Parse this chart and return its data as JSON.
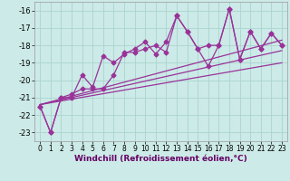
{
  "xlabel": "Windchill (Refroidissement éolien,°C)",
  "bg_color": "#cceae7",
  "grid_color": "#aad4d0",
  "line_color": "#993399",
  "xlim": [
    -0.5,
    23.5
  ],
  "ylim": [
    -23.5,
    -15.5
  ],
  "yticks": [
    -23,
    -22,
    -21,
    -20,
    -19,
    -18,
    -17,
    -16
  ],
  "xticks": [
    0,
    1,
    2,
    3,
    4,
    5,
    6,
    7,
    8,
    9,
    10,
    11,
    12,
    13,
    14,
    15,
    16,
    17,
    18,
    19,
    20,
    21,
    22,
    23
  ],
  "lines": [
    {
      "x": [
        0,
        1,
        2,
        3,
        4,
        5,
        6,
        7,
        8,
        9,
        10,
        11,
        12,
        13,
        14,
        15,
        16,
        17,
        18,
        19,
        20,
        21,
        22,
        23
      ],
      "y": [
        -21.5,
        -23.0,
        -21.0,
        -21.0,
        -19.7,
        -20.4,
        -18.6,
        -19.0,
        -18.5,
        -18.2,
        -17.8,
        -18.5,
        -17.8,
        -16.3,
        -17.2,
        -18.2,
        -18.0,
        -18.0,
        -15.9,
        -18.8,
        -17.2,
        -18.2,
        -17.3,
        -18.0
      ],
      "has_marker": true
    },
    {
      "x": [
        0,
        1,
        2,
        3,
        4,
        5,
        6,
        7,
        8,
        9,
        10,
        11,
        12,
        13,
        14,
        15,
        16,
        17,
        18,
        19,
        20,
        21,
        22,
        23
      ],
      "y": [
        -21.5,
        -23.0,
        -21.0,
        -20.8,
        -20.5,
        -20.5,
        -20.5,
        -19.7,
        -18.4,
        -18.4,
        -18.2,
        -18.0,
        -18.4,
        -16.3,
        -17.2,
        -18.2,
        -19.2,
        -18.0,
        -15.9,
        -18.8,
        -17.2,
        -18.2,
        -17.3,
        -18.0
      ],
      "has_marker": true
    },
    {
      "x": [
        0,
        23
      ],
      "y": [
        -21.4,
        -17.7
      ],
      "has_marker": false
    },
    {
      "x": [
        0,
        23
      ],
      "y": [
        -21.4,
        -18.3
      ],
      "has_marker": false
    },
    {
      "x": [
        0,
        23
      ],
      "y": [
        -21.4,
        -19.0
      ],
      "has_marker": false
    }
  ],
  "marker": "D",
  "markersize": 2.5,
  "linewidth": 0.9
}
